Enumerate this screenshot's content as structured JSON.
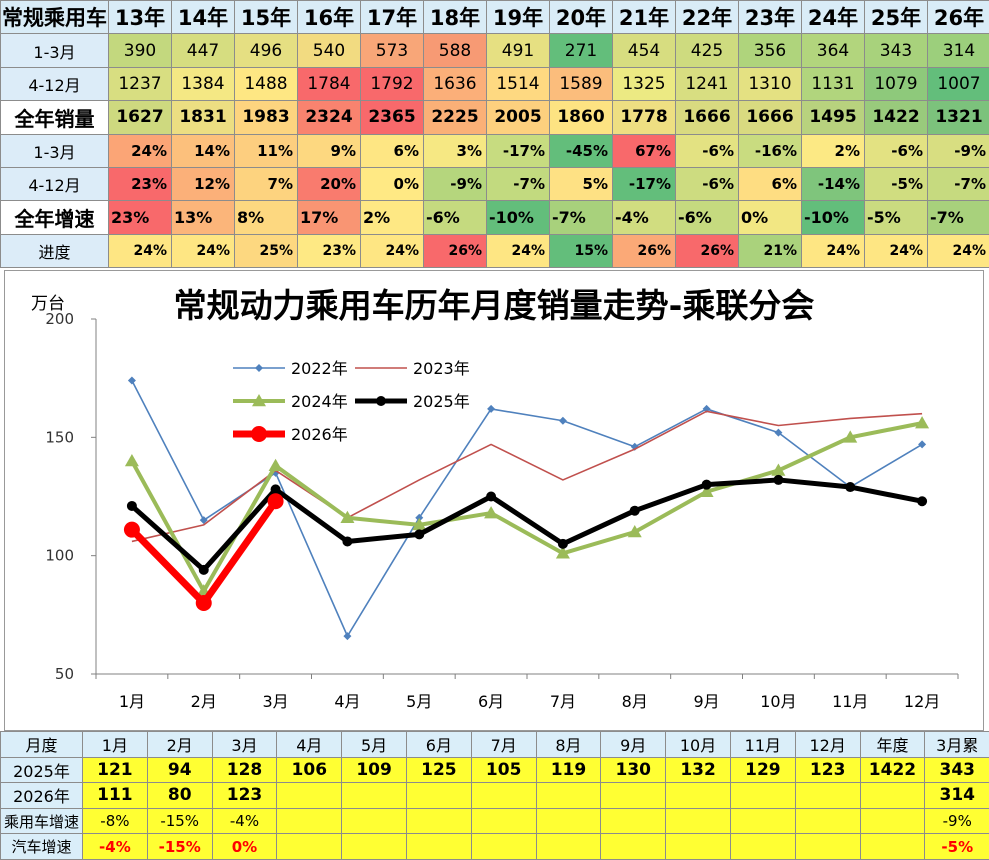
{
  "top_table": {
    "corner": "常规乘用车",
    "years": [
      "13年",
      "14年",
      "15年",
      "16年",
      "17年",
      "18年",
      "19年",
      "20年",
      "21年",
      "22年",
      "23年",
      "24年",
      "25年",
      "26年"
    ],
    "rows": [
      {
        "label": "1-3月",
        "kind": "sales",
        "values": [
          "390",
          "447",
          "496",
          "540",
          "573",
          "588",
          "491",
          "271",
          "454",
          "425",
          "356",
          "364",
          "343",
          "314"
        ],
        "colors": [
          "#c3d87e",
          "#d6dd80",
          "#e5df82",
          "#f2db81",
          "#f8a678",
          "#f79a74",
          "#e6e082",
          "#63be7b",
          "#d7dd80",
          "#cedb7f",
          "#afd47c",
          "#b2d57d",
          "#a8d27c",
          "#9ccf7c"
        ]
      },
      {
        "label": "4-12月",
        "kind": "sales",
        "values": [
          "1237",
          "1384",
          "1488",
          "1784",
          "1792",
          "1636",
          "1514",
          "1589",
          "1325",
          "1241",
          "1310",
          "1131",
          "1079",
          "1007"
        ],
        "colors": [
          "#d8de81",
          "#f4e884",
          "#fee783",
          "#f8696b",
          "#f8696b",
          "#fbaf79",
          "#fed981",
          "#fbbd7c",
          "#ecea83",
          "#d8de81",
          "#e4e182",
          "#b1d57d",
          "#8ec97b",
          "#63be7b"
        ]
      },
      {
        "label": "全年销量",
        "kind": "sales total",
        "big": true,
        "values": [
          "1627",
          "1831",
          "1983",
          "2324",
          "2365",
          "2225",
          "2005",
          "1860",
          "1778",
          "1666",
          "1666",
          "1495",
          "1422",
          "1321"
        ],
        "colors": [
          "#ced97f",
          "#ecde82",
          "#fdd47f",
          "#f9836f",
          "#f8696b",
          "#fab077",
          "#fdd07e",
          "#fde382",
          "#eedf82",
          "#d9da80",
          "#d9da80",
          "#b8d27e",
          "#99ca7c",
          "#7cc27c"
        ]
      },
      {
        "label": "1-3月",
        "kind": "pct",
        "values": [
          "24%",
          "14%",
          "11%",
          "9%",
          "6%",
          "3%",
          "-17%",
          "-45%",
          "67%",
          "-6%",
          "-16%",
          "2%",
          "-6%",
          "-9%"
        ],
        "colors": [
          "#fba576",
          "#fcc07c",
          "#fdce7f",
          "#fdd880",
          "#fee683",
          "#f6e883",
          "#c7dc80",
          "#63be7b",
          "#f8696b",
          "#e3e282",
          "#c9dc80",
          "#fce984",
          "#e3e282",
          "#d8de81"
        ]
      },
      {
        "label": "4-12月",
        "kind": "pct",
        "values": [
          "23%",
          "12%",
          "7%",
          "20%",
          "0%",
          "-9%",
          "-7%",
          "5%",
          "-17%",
          "-6%",
          "6%",
          "-14%",
          "-5%",
          "-7%"
        ],
        "colors": [
          "#f8696b",
          "#fbb079",
          "#fdd37f",
          "#f97b6e",
          "#ffe984",
          "#b5d67d",
          "#c2da7f",
          "#fee184",
          "#63be7b",
          "#cddc80",
          "#fedd82",
          "#7fc57c",
          "#d0dd80",
          "#c6da7f"
        ]
      },
      {
        "label": "全年增速",
        "kind": "pct total",
        "big": true,
        "values": [
          "23%",
          "13%",
          "8%",
          "17%",
          "2%",
          "-6%",
          "-10%",
          "-7%",
          "-4%",
          "-6%",
          "0%",
          "-10%",
          "-5%",
          "-7%"
        ],
        "colors": [
          "#f8696b",
          "#fbb57a",
          "#fdd880",
          "#f99573",
          "#fee884",
          "#c5da7f",
          "#63be7b",
          "#a8d17c",
          "#d1dd80",
          "#c5da7f",
          "#f2e783",
          "#63be7b",
          "#cadb80",
          "#a8d17c"
        ]
      },
      {
        "label": "进度",
        "kind": "prog",
        "values": [
          "24%",
          "24%",
          "25%",
          "23%",
          "24%",
          "26%",
          "24%",
          "15%",
          "26%",
          "26%",
          "21%",
          "24%",
          "24%",
          "24%"
        ],
        "colors": [
          "#fee683",
          "#fee683",
          "#fdd880",
          "#fee984",
          "#fee683",
          "#f8696b",
          "#fee683",
          "#63be7b",
          "#fba977",
          "#f8696b",
          "#aad27c",
          "#fee683",
          "#fee683",
          "#fee683"
        ]
      }
    ]
  },
  "chart_data": {
    "type": "line",
    "title": "常规动力乘用车历年月度销量走势-乘联分会",
    "ylabel": "万台",
    "categories": [
      "1月",
      "2月",
      "3月",
      "4月",
      "5月",
      "6月",
      "7月",
      "8月",
      "9月",
      "10月",
      "11月",
      "12月"
    ],
    "ylim": [
      50,
      200
    ],
    "yticks": [
      "50",
      "100",
      "150",
      "200"
    ],
    "series": [
      {
        "name": "2022年",
        "color": "#4f81bd",
        "values": [
          174,
          115,
          135,
          66,
          116,
          162,
          157,
          146,
          162,
          152,
          129,
          147
        ]
      },
      {
        "name": "2023年",
        "color": "#c0504d",
        "values": [
          106,
          113,
          136,
          116,
          132,
          147,
          132,
          145,
          161,
          155,
          158,
          160
        ]
      },
      {
        "name": "2024年",
        "color": "#9bbb59",
        "values": [
          140,
          85,
          138,
          116,
          113,
          118,
          101,
          110,
          127,
          136,
          150,
          156
        ]
      },
      {
        "name": "2025年",
        "color": "#000000",
        "values": [
          121,
          94,
          128,
          106,
          109,
          125,
          105,
          119,
          130,
          132,
          129,
          123
        ]
      },
      {
        "name": "2026年",
        "color": "#ff0000",
        "values": [
          111,
          80,
          123,
          null,
          null,
          null,
          null,
          null,
          null,
          null,
          null,
          null
        ]
      }
    ]
  },
  "bottom_table": {
    "header_label": "月度",
    "columns": [
      "1月",
      "2月",
      "3月",
      "4月",
      "5月",
      "6月",
      "7月",
      "8月",
      "9月",
      "10月",
      "11月",
      "12月",
      "年度",
      "3月累"
    ],
    "rows": [
      {
        "label": "2025年",
        "cls": "yr",
        "values": [
          "121",
          "94",
          "128",
          "106",
          "109",
          "125",
          "105",
          "119",
          "130",
          "132",
          "129",
          "123",
          "1422",
          "343"
        ]
      },
      {
        "label": "2026年",
        "cls": "yr",
        "values": [
          "111",
          "80",
          "123",
          "",
          "",
          "",
          "",
          "",
          "",
          "",
          "",
          "",
          "",
          "314"
        ]
      },
      {
        "label": "乘用车增速",
        "cls": "growth",
        "values": [
          "-8%",
          "-15%",
          "-4%",
          "",
          "",
          "",
          "",
          "",
          "",
          "",
          "",
          "",
          "",
          "-9%"
        ]
      },
      {
        "label": "汽车增速",
        "cls": "growth auto",
        "values": [
          "-4%",
          "-15%",
          "0%",
          "",
          "",
          "",
          "",
          "",
          "",
          "",
          "",
          "",
          "",
          "-5%"
        ]
      }
    ]
  }
}
